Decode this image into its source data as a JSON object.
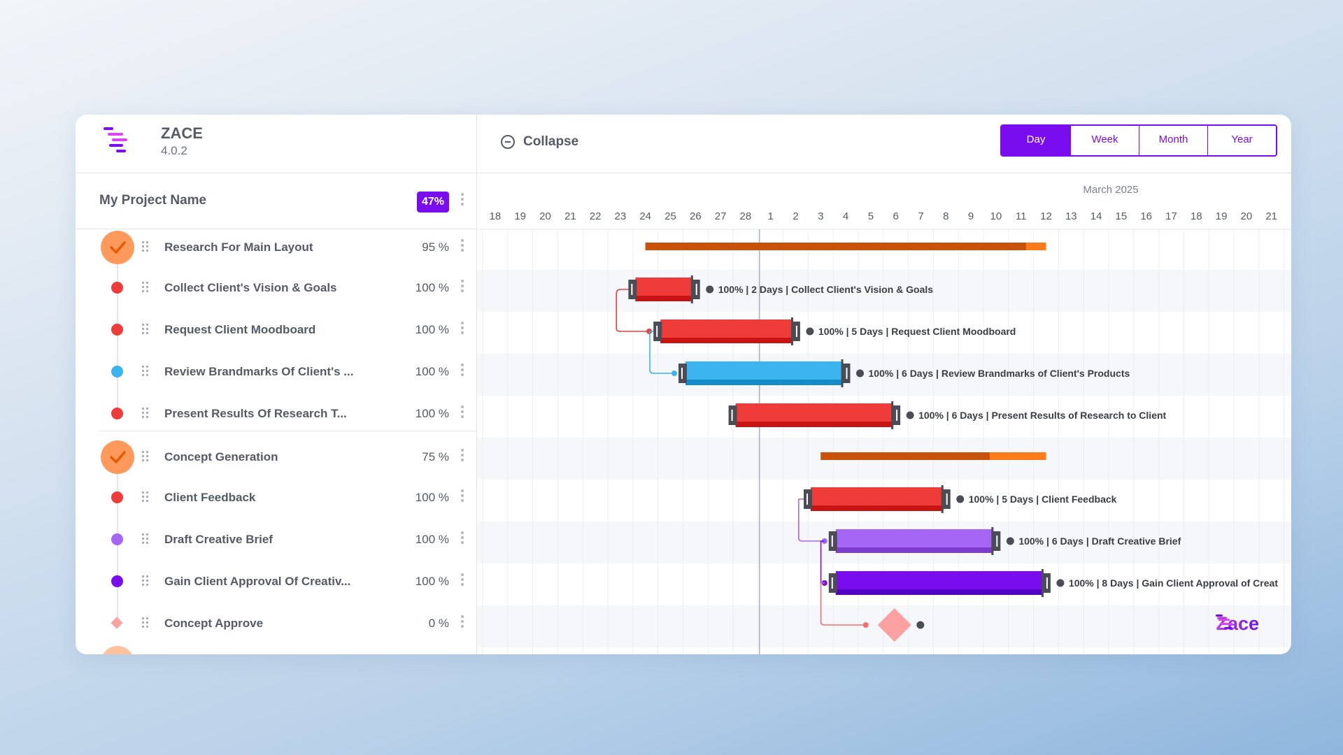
{
  "brand": {
    "name": "ZACE",
    "version": "4.0.2",
    "logo_icon": "zace-logo-icon"
  },
  "project": {
    "name": "My Project Name",
    "progress": "47%"
  },
  "toolbar": {
    "collapse_label": "Collapse",
    "views": [
      "Day",
      "Week",
      "Month",
      "Year"
    ],
    "active_view": "Day"
  },
  "timeline": {
    "month_label": "March 2025",
    "days": [
      "18",
      "19",
      "20",
      "21",
      "22",
      "23",
      "24",
      "25",
      "26",
      "27",
      "28",
      "1",
      "2",
      "3",
      "4",
      "5",
      "6",
      "7",
      "8",
      "9",
      "10",
      "11",
      "12",
      "13",
      "14",
      "15",
      "16",
      "17",
      "18",
      "19",
      "20",
      "21",
      "22"
    ]
  },
  "tasks": [
    {
      "name": "Research For Main Layout",
      "percent": "95 %",
      "kind": "group",
      "color": "#ff9a5c",
      "start": 6.5,
      "end": 22.5,
      "progress": 0.95
    },
    {
      "name": "Collect Client's Vision & Goals",
      "percent": "100 %",
      "kind": "task",
      "color": "#f03b3b",
      "start": 6.1,
      "end": 8.4,
      "label": "100% | 2 Days | Collect Client's Vision & Goals"
    },
    {
      "name": "Request Client Moodboard",
      "percent": "100 %",
      "kind": "task",
      "color": "#f03b3b",
      "start": 7.1,
      "end": 12.4,
      "label": "100% | 5 Days | Request Client Moodboard"
    },
    {
      "name": "Review Brandmarks Of Client's ...",
      "percent": "100 %",
      "kind": "task",
      "color": "#3cb4ef",
      "start": 8.1,
      "end": 14.4,
      "label": "100% | 6 Days | Review Brandmarks of Client's Products"
    },
    {
      "name": "Present Results Of Research T...",
      "percent": "100 %",
      "kind": "task",
      "color": "#f03b3b",
      "start": 10.1,
      "end": 16.4,
      "label": "100% | 6 Days | Present Results of Research to Client"
    },
    {
      "name": "Concept Generation",
      "percent": "75 %",
      "kind": "group",
      "color": "#ff9a5c",
      "start": 13.5,
      "end": 22.5,
      "progress": 0.75
    },
    {
      "name": "Client Feedback",
      "percent": "100 %",
      "kind": "task",
      "color": "#f03b3b",
      "start": 13.1,
      "end": 18.4,
      "label": "100% | 5 Days | Client Feedback"
    },
    {
      "name": "Draft Creative Brief",
      "percent": "100 %",
      "kind": "task",
      "color": "#a666f5",
      "start": 14.1,
      "end": 20.4,
      "label": "100% | 6 Days | Draft Creative Brief"
    },
    {
      "name": "Gain Client Approval Of Creativ...",
      "percent": "100 %",
      "kind": "task",
      "color": "#7a0cf0",
      "start": 14.1,
      "end": 22.4,
      "label": "100% | 8 Days | Gain Client Approval of Creat"
    },
    {
      "name": "Concept Approve",
      "percent": "0 %",
      "kind": "milestone",
      "color": "#fca1a1",
      "start": 16.0,
      "end": 16.0
    }
  ],
  "watermark": "Zace",
  "colors": {
    "accent": "#7a0cf0",
    "group_bar": "#c9520a",
    "group_bar_remaining": "#ff7a1a",
    "today_line": "#9aa0ad"
  }
}
